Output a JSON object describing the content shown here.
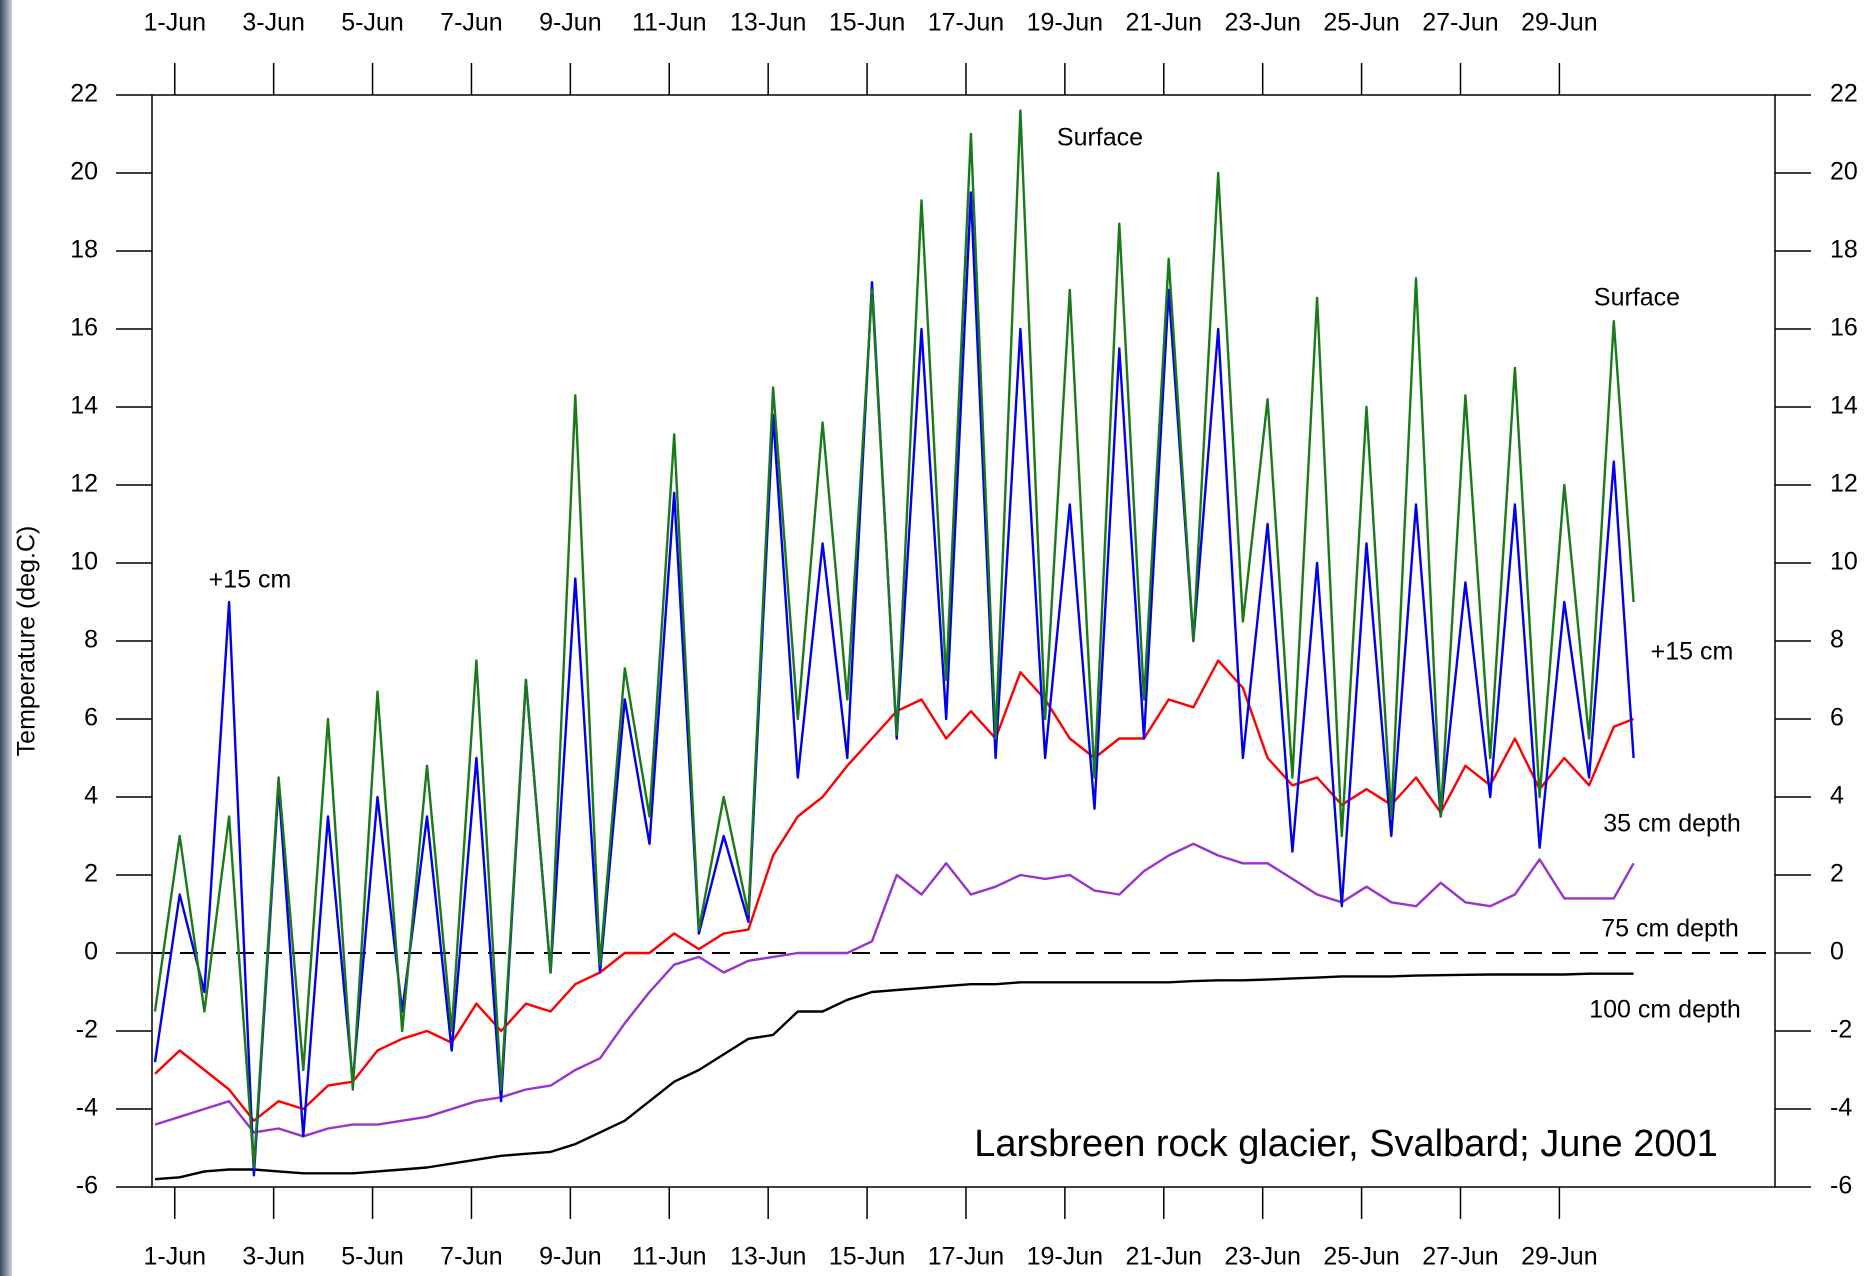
{
  "chart_data": {
    "type": "line",
    "title": "Larsbreen rock glacier, Svalbard; June 2001",
    "y_label": "Temperature (deg.C)",
    "xlim": [
      0.54,
      33.36
    ],
    "xticks": [
      {
        "value": 1,
        "label": "1-Jun"
      },
      {
        "value": 3,
        "label": "3-Jun"
      },
      {
        "value": 5,
        "label": "5-Jun"
      },
      {
        "value": 7,
        "label": "7-Jun"
      },
      {
        "value": 9,
        "label": "9-Jun"
      },
      {
        "value": 11,
        "label": "11-Jun"
      },
      {
        "value": 13,
        "label": "13-Jun"
      },
      {
        "value": 15,
        "label": "15-Jun"
      },
      {
        "value": 17,
        "label": "17-Jun"
      },
      {
        "value": 19,
        "label": "19-Jun"
      },
      {
        "value": 21,
        "label": "21-Jun"
      },
      {
        "value": 23,
        "label": "23-Jun"
      },
      {
        "value": 25,
        "label": "25-Jun"
      },
      {
        "value": 27,
        "label": "27-Jun"
      },
      {
        "value": 29,
        "label": "29-Jun"
      }
    ],
    "ylim": [
      -6,
      22
    ],
    "yticks": [
      -6,
      -4,
      -2,
      0,
      2,
      4,
      6,
      8,
      10,
      12,
      14,
      16,
      18,
      20,
      22
    ],
    "reference_line": 0,
    "x": [
      0.6,
      1.1,
      1.6,
      2.1,
      2.6,
      3.1,
      3.6,
      4.1,
      4.6,
      5.1,
      5.6,
      6.1,
      6.6,
      7.1,
      7.6,
      8.1,
      8.6,
      9.1,
      9.6,
      10.1,
      10.6,
      11.1,
      11.6,
      12.1,
      12.6,
      13.1,
      13.6,
      14.1,
      14.6,
      15.1,
      15.6,
      16.1,
      16.6,
      17.1,
      17.6,
      18.1,
      18.6,
      19.1,
      19.6,
      20.1,
      20.6,
      21.1,
      21.6,
      22.1,
      22.6,
      23.1,
      23.6,
      24.1,
      24.6,
      25.1,
      25.6,
      26.1,
      26.6,
      27.1,
      27.6,
      28.1,
      28.6,
      29.1,
      29.6,
      30.1,
      30.5
    ],
    "series": [
      {
        "name": "Surface",
        "color": "#1a7a1a",
        "values": [
          -1.5,
          3,
          -1.5,
          3.5,
          -5.5,
          4.5,
          -3,
          6,
          -3.5,
          6.7,
          -2,
          4.8,
          -2,
          7.5,
          -3.5,
          7,
          -0.5,
          14.3,
          -0.3,
          7.3,
          3.5,
          13.3,
          0.6,
          4,
          1,
          14.5,
          6,
          13.6,
          6.5,
          17,
          5.6,
          19.3,
          7,
          21,
          5.5,
          21.6,
          6,
          17,
          4.5,
          18.7,
          6.5,
          17.8,
          8,
          20,
          8.5,
          14.2,
          4.5,
          16.8,
          3,
          14,
          3.5,
          17.3,
          3.5,
          14.3,
          5,
          15,
          4,
          12,
          5.5,
          16.2,
          9
        ]
      },
      {
        "name": "+15 cm",
        "color": "#0000ee",
        "values": [
          -2.8,
          1.5,
          -1,
          9,
          -5.7,
          4.3,
          -4.7,
          3.5,
          -3.3,
          4,
          -1.5,
          3.5,
          -2.5,
          5,
          -3.8,
          7,
          -0.5,
          9.6,
          -0.5,
          6.5,
          2.8,
          11.8,
          0.5,
          3,
          0.8,
          13.8,
          4.5,
          10.5,
          5,
          17.2,
          5.5,
          16,
          6,
          19.5,
          5,
          16,
          5,
          11.5,
          3.7,
          15.5,
          5.5,
          17,
          8,
          16,
          5,
          11,
          2.6,
          10,
          1.2,
          10.5,
          3,
          11.5,
          3.5,
          9.5,
          4,
          11.5,
          2.7,
          9,
          4.5,
          12.6,
          5
        ]
      },
      {
        "name": "35 cm depth",
        "color": "#ff0000",
        "values": [
          -3.1,
          -2.5,
          -3,
          -3.5,
          -4.3,
          -3.8,
          -4,
          -3.4,
          -3.3,
          -2.5,
          -2.2,
          -2,
          -2.3,
          -1.3,
          -2,
          -1.3,
          -1.5,
          -0.8,
          -0.5,
          0,
          0,
          0.5,
          0.1,
          0.5,
          0.6,
          2.5,
          3.5,
          4,
          4.8,
          5.5,
          6.2,
          6.5,
          5.5,
          6.2,
          5.5,
          7.2,
          6.5,
          5.5,
          5,
          5.5,
          5.5,
          6.5,
          6.3,
          7.5,
          6.8,
          5,
          4.3,
          4.5,
          3.8,
          4.2,
          3.8,
          4.5,
          3.6,
          4.8,
          4.3,
          5.5,
          4.2,
          5,
          4.3,
          5.8,
          6
        ]
      },
      {
        "name": "75 cm depth",
        "color": "#9933cc",
        "values": [
          -4.4,
          -4.2,
          -4,
          -3.8,
          -4.6,
          -4.5,
          -4.7,
          -4.5,
          -4.4,
          -4.4,
          -4.3,
          -4.2,
          -4,
          -3.8,
          -3.7,
          -3.5,
          -3.4,
          -3,
          -2.7,
          -1.8,
          -1,
          -0.3,
          -0.1,
          -0.5,
          -0.2,
          -0.1,
          0,
          0,
          0,
          0.3,
          2,
          1.5,
          2.3,
          1.5,
          1.7,
          2,
          1.9,
          2,
          1.6,
          1.5,
          2.1,
          2.5,
          2.8,
          2.5,
          2.3,
          2.3,
          1.9,
          1.5,
          1.3,
          1.7,
          1.3,
          1.2,
          1.8,
          1.3,
          1.2,
          1.5,
          2.4,
          1.4,
          1.4,
          1.4,
          2.3
        ]
      },
      {
        "name": "100 cm depth",
        "color": "#000000",
        "values": [
          -5.8,
          -5.75,
          -5.6,
          -5.55,
          -5.55,
          -5.6,
          -5.65,
          -5.65,
          -5.65,
          -5.6,
          -5.55,
          -5.5,
          -5.4,
          -5.3,
          -5.2,
          -5.15,
          -5.1,
          -4.9,
          -4.6,
          -4.3,
          -3.8,
          -3.3,
          -3,
          -2.6,
          -2.2,
          -2.1,
          -1.5,
          -1.5,
          -1.2,
          -1,
          -0.95,
          -0.9,
          -0.85,
          -0.8,
          -0.8,
          -0.75,
          -0.75,
          -0.75,
          -0.75,
          -0.75,
          -0.75,
          -0.75,
          -0.72,
          -0.7,
          -0.7,
          -0.68,
          -0.65,
          -0.63,
          -0.6,
          -0.6,
          -0.6,
          -0.58,
          -0.57,
          -0.56,
          -0.55,
          -0.55,
          -0.55,
          -0.55,
          -0.53,
          -0.53,
          -0.53
        ]
      }
    ]
  }
}
